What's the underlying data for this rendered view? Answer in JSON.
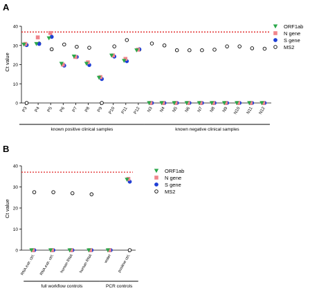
{
  "colors": {
    "orf1ab": "#2aa84a",
    "ngene": "#f0858c",
    "sgene": "#1f3fd6",
    "ms2": "#000000",
    "threshold": "#e02020"
  },
  "chart_data": [
    {
      "panel": "A",
      "type": "scatter",
      "ylabel": "Ct value",
      "ylim": [
        0,
        40
      ],
      "yticks": [
        "0",
        "10",
        "20",
        "30",
        "40"
      ],
      "threshold": 37,
      "categories": [
        "P3",
        "P4",
        "P5",
        "P6",
        "P7",
        "P8",
        "P9",
        "P10",
        "P11",
        "P12",
        "N3",
        "N4",
        "N5",
        "N6",
        "N7",
        "N8",
        "N9",
        "N10",
        "N11",
        "N12"
      ],
      "groups": [
        {
          "label": "known positive clinical samples",
          "from": 0,
          "to": 9
        },
        {
          "label": "known negative clinical samples",
          "from": 10,
          "to": 19
        }
      ],
      "legend": [
        "ORF1ab",
        "N gene",
        "S gene",
        "MS2"
      ],
      "series": [
        {
          "name": "ORF1ab",
          "values": [
            30.5,
            30.8,
            33.8,
            20.5,
            24.3,
            20.5,
            13.2,
            24.8,
            22.0,
            27.5,
            0,
            0,
            0,
            0,
            0,
            0,
            0,
            0,
            0,
            0
          ]
        },
        {
          "name": "N gene",
          "values": [
            30.8,
            34.2,
            36.5,
            20.0,
            24.0,
            21.2,
            13.5,
            24.8,
            23.0,
            27.8,
            0,
            0,
            0,
            0,
            0,
            0,
            0,
            0,
            0,
            0
          ]
        },
        {
          "name": "S gene",
          "values": [
            30.2,
            30.8,
            34.5,
            19.5,
            24.0,
            19.8,
            12.5,
            24.2,
            21.8,
            28.0,
            0,
            0,
            0,
            0,
            0,
            0,
            0,
            0,
            0,
            0
          ]
        },
        {
          "name": "MS2",
          "values": [
            0,
            31.0,
            28.0,
            30.5,
            29.3,
            28.8,
            0,
            29.5,
            32.8,
            27.8,
            31.0,
            30.0,
            27.5,
            27.5,
            27.5,
            27.8,
            29.5,
            29.5,
            28.5,
            28.3
          ]
        }
      ]
    },
    {
      "panel": "B",
      "type": "scatter",
      "ylabel": "Ct value",
      "ylim": [
        0,
        40
      ],
      "yticks": [
        "0",
        "10",
        "20",
        "30",
        "40"
      ],
      "threshold": 37,
      "categories": [
        "RNA extr. ctrl.",
        "RNA extr. ctrl.",
        "human RNA",
        "human RNA",
        "water",
        "positive ctrl."
      ],
      "groups": [
        {
          "label": "full workflow controls",
          "from": 0,
          "to": 3
        },
        {
          "label": "PCR controls",
          "from": 4,
          "to": 5
        }
      ],
      "legend": [
        "ORF1ab",
        "N gene",
        "S gene",
        "MS2"
      ],
      "series": [
        {
          "name": "ORF1ab",
          "values": [
            0,
            0,
            0,
            0,
            0,
            33.5
          ]
        },
        {
          "name": "N gene",
          "values": [
            0,
            0,
            0,
            0,
            0,
            33.8
          ]
        },
        {
          "name": "S gene",
          "values": [
            0,
            0,
            0,
            0,
            0,
            32.5
          ]
        },
        {
          "name": "MS2",
          "values": [
            27.5,
            27.5,
            27.0,
            26.5,
            0,
            0
          ]
        }
      ]
    }
  ]
}
